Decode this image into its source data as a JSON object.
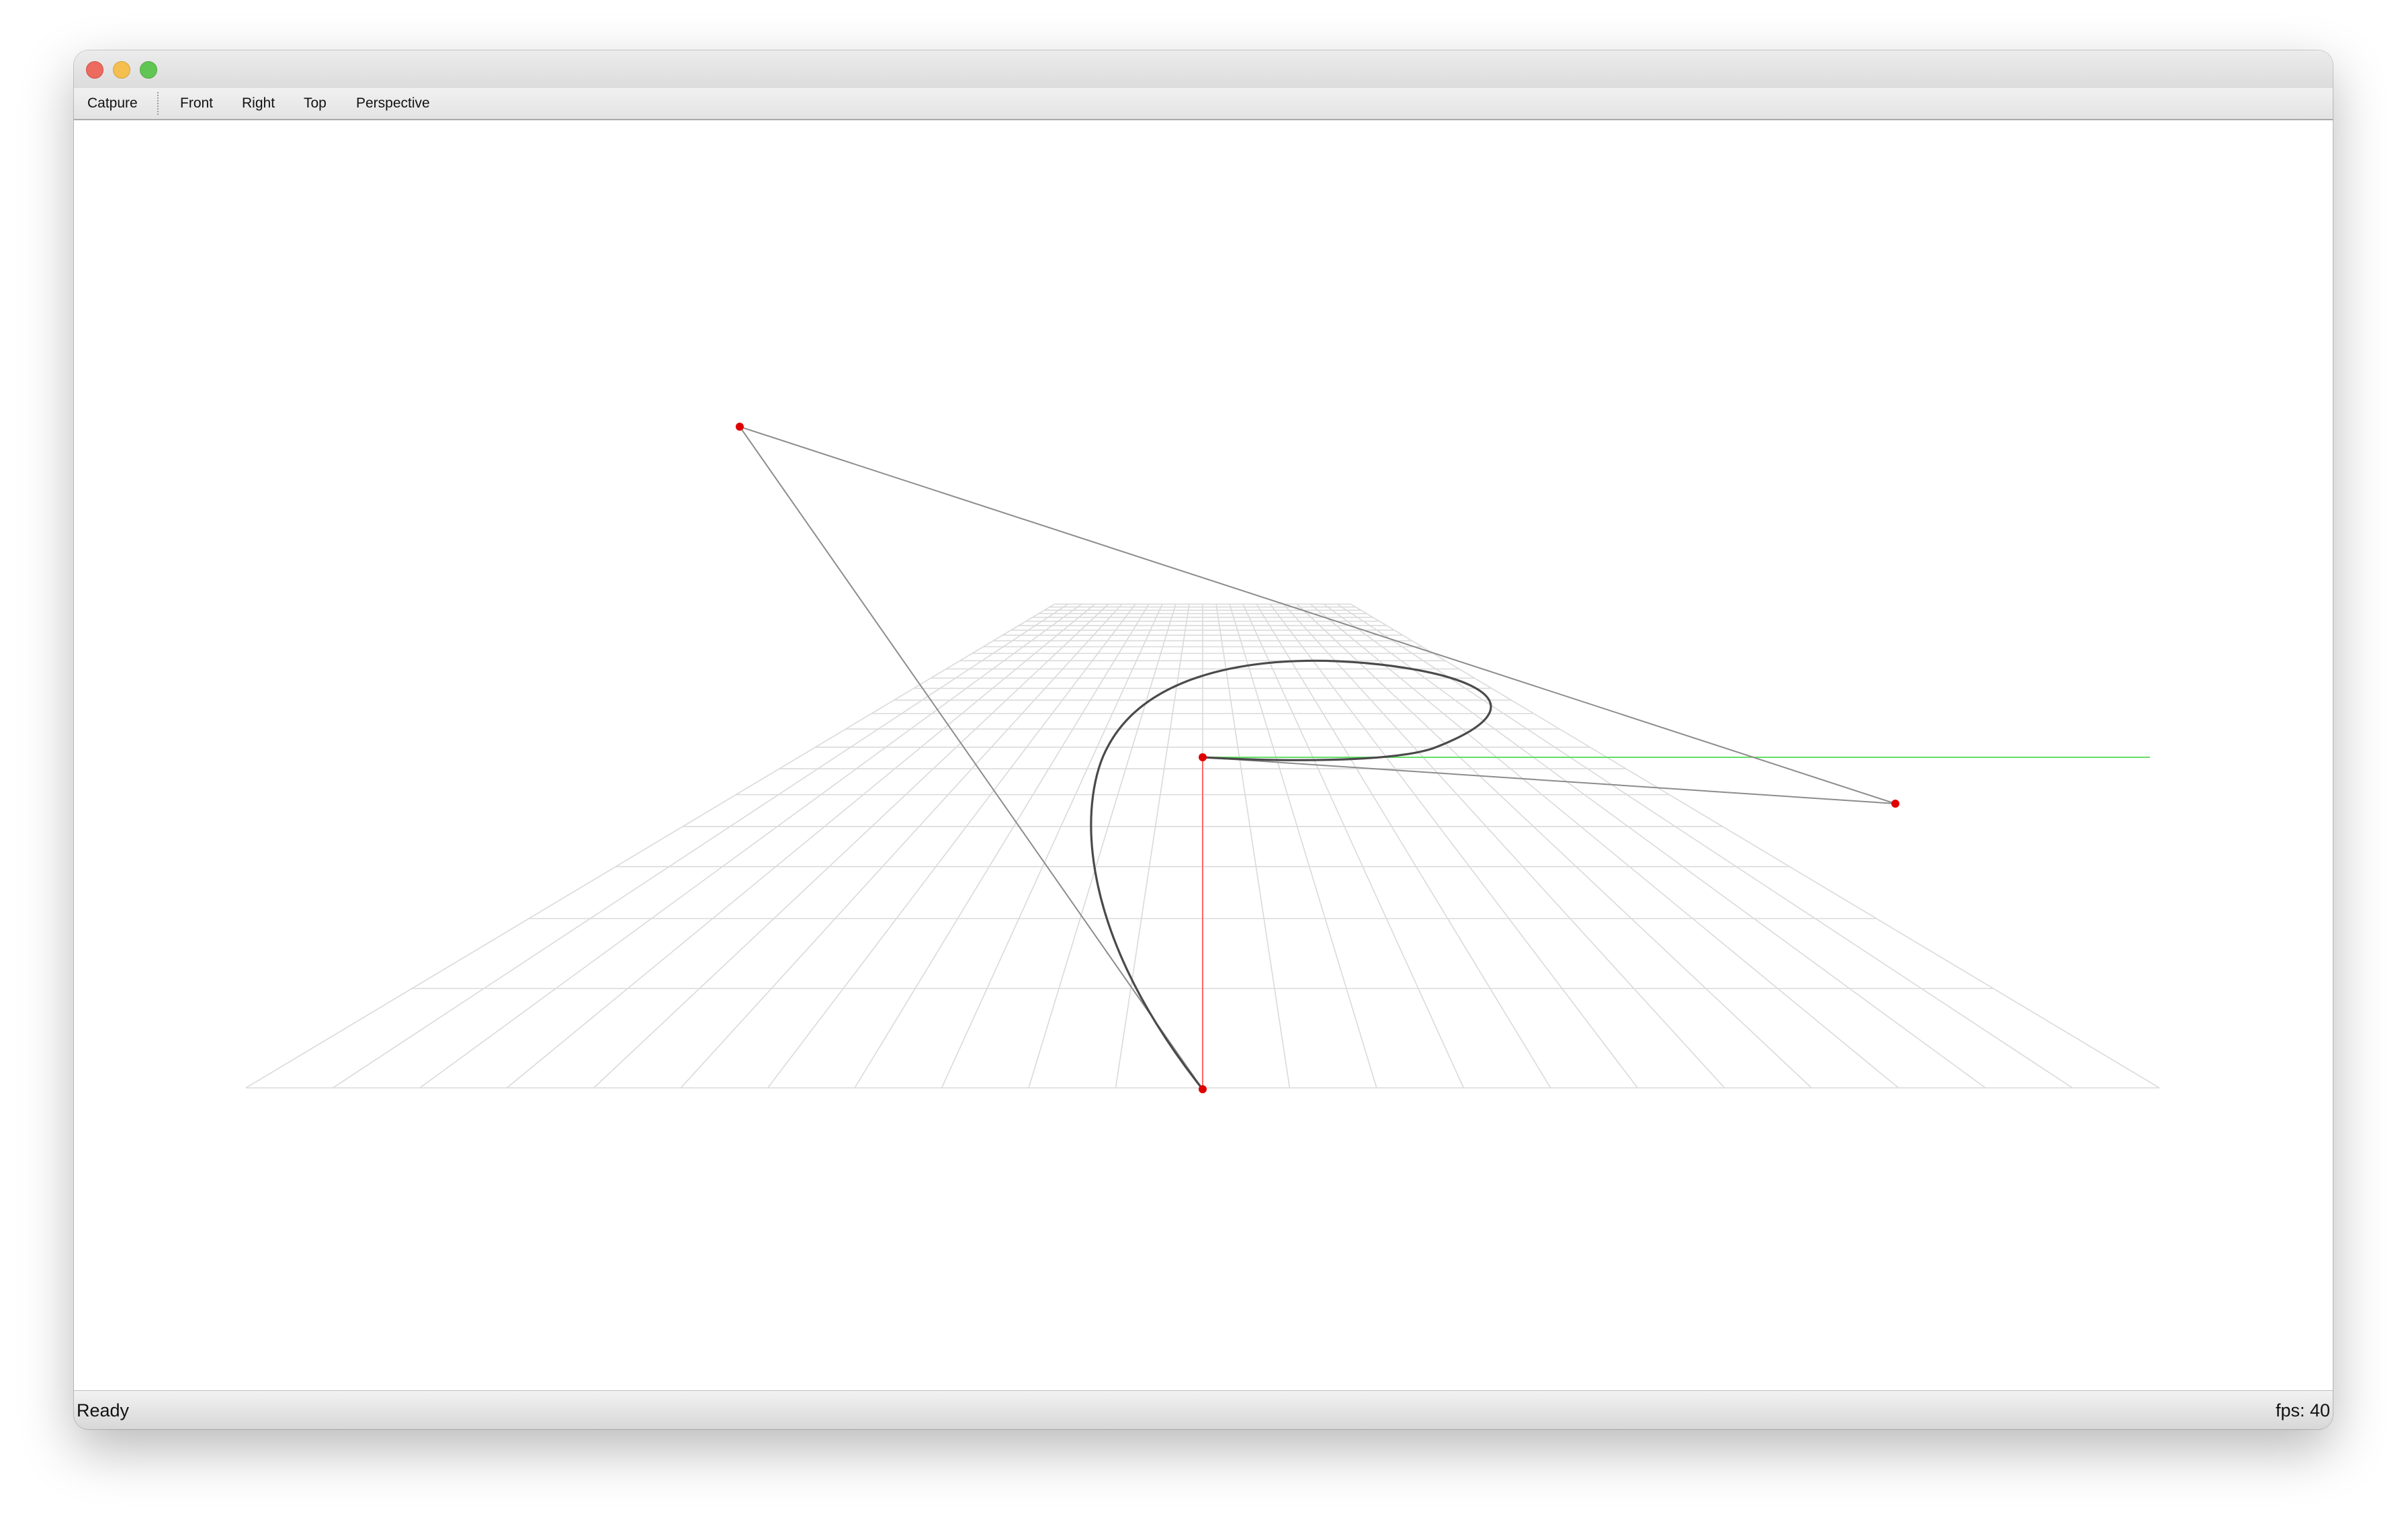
{
  "window": {
    "controls": {
      "close": "close-icon",
      "minimize": "minimize-icon",
      "maximize": "maximize-icon"
    }
  },
  "toolbar": {
    "capture_label": "Catpure",
    "front_label": "Front",
    "right_label": "Right",
    "top_label": "Top",
    "perspective_label": "Perspective"
  },
  "viewport": {
    "curve_color": "#4a4a4a",
    "control_line_color": "#8c8c8c",
    "control_point_color": "#e00000",
    "grid_color": "#dadada",
    "x_axis_color": "#66dd66",
    "y_axis_color": "#ff6666"
  },
  "status": {
    "text": "Ready",
    "fps": "fps: 40"
  }
}
